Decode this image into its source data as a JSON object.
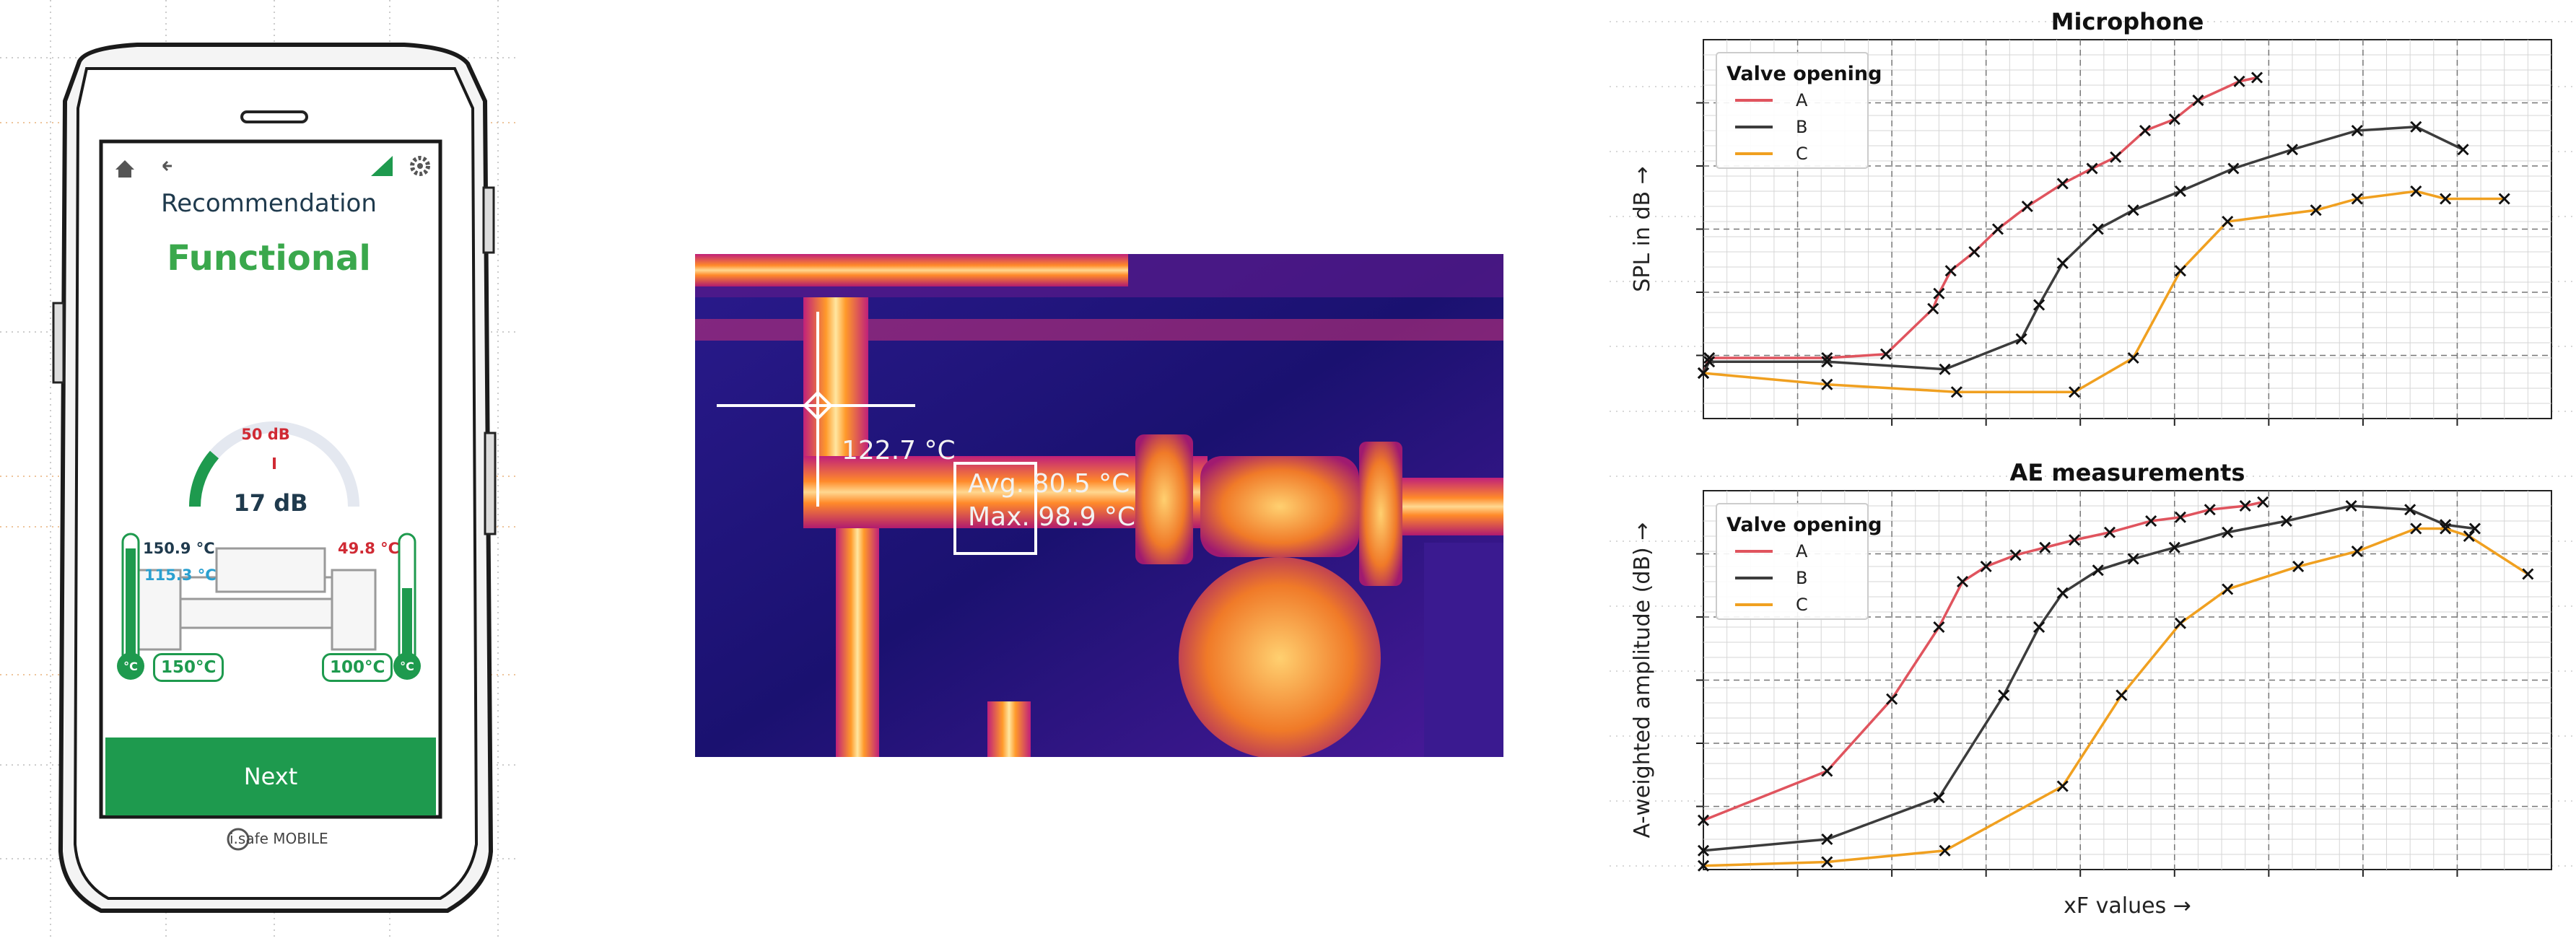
{
  "phone": {
    "title": "Recommendation",
    "status": "Functional",
    "gauge": {
      "value_label": "17 dB",
      "max_label": "50 dB",
      "level": 0.34
    },
    "temps": {
      "left_top": "150.9 °C",
      "left_mid": "115.3 °C",
      "right_top": "49.8 °C",
      "left_set": "150°C",
      "right_set": "100°C",
      "unit": "°C"
    },
    "next_label": "Next",
    "brand": "i.safe MOBILE",
    "colors": {
      "green": "#1e9a4e",
      "status_green": "#3aa84c",
      "red": "#d02a34",
      "blue": "#2aa0d0",
      "navy": "#1f3a4d"
    },
    "icons": [
      "home-icon",
      "back-arrow-icon",
      "signal-icon",
      "gear-icon"
    ]
  },
  "thermal": {
    "point_temp": "122.7 °C",
    "avg": "Avg. 80.5 °C",
    "max": "Max. 98.9 °C"
  },
  "chart_data": [
    {
      "type": "line",
      "title": "Microphone",
      "ylabel": "SPL in dB →",
      "xlabel": "",
      "legend_title": "Valve opening",
      "legend_position": "top-left",
      "grid": true,
      "xlim": [
        0,
        7.2
      ],
      "ylim": [
        0,
        10
      ],
      "series": [
        {
          "name": "A",
          "color": "#e0545e",
          "x": [
            0,
            0.05,
            1.05,
            1.55,
            1.95,
            2.0,
            2.1,
            2.3,
            2.5,
            2.75,
            3.05,
            3.3,
            3.5,
            3.75,
            4.0,
            4.2,
            4.55,
            4.7
          ],
          "y": [
            1.2,
            1.6,
            1.6,
            1.7,
            2.9,
            3.3,
            3.9,
            4.4,
            5.0,
            5.6,
            6.2,
            6.6,
            6.9,
            7.6,
            7.9,
            8.4,
            8.9,
            9.0
          ]
        },
        {
          "name": "B",
          "color": "#3c3c3c",
          "x": [
            0,
            0.05,
            1.05,
            2.05,
            2.7,
            2.85,
            3.05,
            3.35,
            3.65,
            4.05,
            4.5,
            5.0,
            5.55,
            6.05,
            6.45
          ],
          "y": [
            1.2,
            1.5,
            1.5,
            1.3,
            2.1,
            3.0,
            4.1,
            5.0,
            5.5,
            6.0,
            6.6,
            7.1,
            7.6,
            7.7,
            7.1
          ]
        },
        {
          "name": "C",
          "color": "#f0a020",
          "x": [
            0,
            1.05,
            2.15,
            3.15,
            3.65,
            4.05,
            4.45,
            5.2,
            5.55,
            6.05,
            6.3,
            6.8
          ],
          "y": [
            1.2,
            0.9,
            0.7,
            0.7,
            1.6,
            3.9,
            5.2,
            5.5,
            5.8,
            6.0,
            5.8,
            5.8
          ]
        }
      ]
    },
    {
      "type": "line",
      "title": "AE measurements",
      "ylabel": "A-weighted amplitude (dB) →",
      "xlabel": "xF values →",
      "legend_title": "Valve opening",
      "legend_position": "top-left",
      "grid": true,
      "xlim": [
        0,
        7.2
      ],
      "ylim": [
        0,
        10
      ],
      "series": [
        {
          "name": "A",
          "color": "#e0545e",
          "x": [
            0,
            1.05,
            1.6,
            2.0,
            2.2,
            2.4,
            2.65,
            2.9,
            3.15,
            3.45,
            3.8,
            4.05,
            4.3,
            4.6,
            4.75
          ],
          "y": [
            1.3,
            2.6,
            4.5,
            6.4,
            7.6,
            8.0,
            8.3,
            8.5,
            8.7,
            8.9,
            9.2,
            9.3,
            9.5,
            9.6,
            9.7
          ]
        },
        {
          "name": "B",
          "color": "#3c3c3c",
          "x": [
            0,
            1.05,
            2.0,
            2.55,
            2.85,
            3.05,
            3.35,
            3.65,
            4.0,
            4.45,
            4.95,
            5.5,
            6.0,
            6.3,
            6.55
          ],
          "y": [
            0.5,
            0.8,
            1.9,
            4.6,
            6.4,
            7.3,
            7.9,
            8.2,
            8.5,
            8.9,
            9.2,
            9.6,
            9.5,
            9.1,
            9.0
          ]
        },
        {
          "name": "C",
          "color": "#f0a020",
          "x": [
            0,
            1.05,
            2.05,
            3.05,
            3.55,
            4.05,
            4.45,
            5.05,
            5.55,
            6.05,
            6.3,
            6.5,
            7.0
          ],
          "y": [
            0.1,
            0.2,
            0.5,
            2.2,
            4.6,
            6.5,
            7.4,
            8.0,
            8.4,
            9.0,
            9.0,
            8.8,
            7.8
          ]
        }
      ]
    }
  ]
}
